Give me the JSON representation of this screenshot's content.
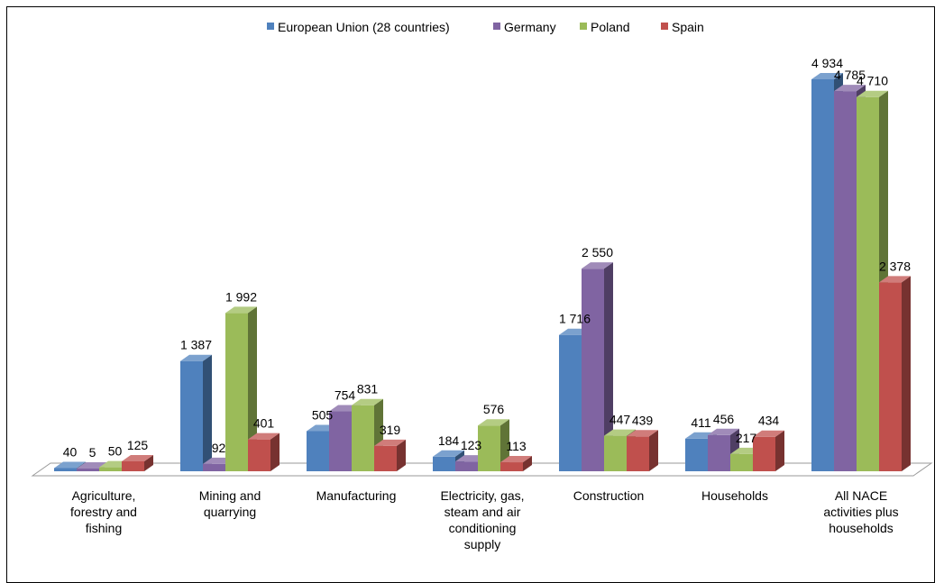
{
  "chart_data": {
    "type": "bar",
    "title": "",
    "xlabel": "",
    "ylabel": "",
    "ylim": [
      0,
      4934
    ],
    "grid": false,
    "legend_position": "top",
    "categories": [
      "Agriculture, forestry and fishing",
      "Mining and quarrying",
      "Manufacturing",
      "Electricity, gas, steam and air conditioning supply",
      "Construction",
      "Households",
      "All NACE activities plus households"
    ],
    "category_lines": [
      [
        "Agriculture,",
        "forestry and",
        "fishing"
      ],
      [
        "Mining and",
        "quarrying"
      ],
      [
        "Manufacturing"
      ],
      [
        "Electricity, gas,",
        "steam and air",
        "conditioning",
        "supply"
      ],
      [
        "Construction"
      ],
      [
        "Households"
      ],
      [
        "All NACE",
        "activities plus",
        "households"
      ]
    ],
    "series": [
      {
        "name": "European Union (28 countries)",
        "color": "#4F81BD",
        "values": [
          40,
          1387,
          505,
          184,
          1716,
          411,
          4934
        ],
        "labels": [
          "40",
          "1 387",
          "505",
          "184",
          "1 716",
          "411",
          "4 934"
        ]
      },
      {
        "name": "Germany",
        "color": "#8064A2",
        "values": [
          5,
          92,
          754,
          123,
          2550,
          456,
          4785
        ],
        "labels": [
          "5",
          "92",
          "754",
          "123",
          "2 550",
          "456",
          "4 785"
        ]
      },
      {
        "name": "Poland",
        "color": "#9BBB59",
        "values": [
          50,
          1992,
          831,
          576,
          447,
          217,
          4710
        ],
        "labels": [
          "50",
          "1 992",
          "831",
          "576",
          "447",
          "217",
          "4 710"
        ]
      },
      {
        "name": "Spain",
        "color": "#C0504D",
        "values": [
          125,
          401,
          319,
          113,
          439,
          434,
          2378
        ],
        "labels": [
          "125",
          "401",
          "319",
          "113",
          "439",
          "434",
          "2 378"
        ]
      }
    ]
  }
}
